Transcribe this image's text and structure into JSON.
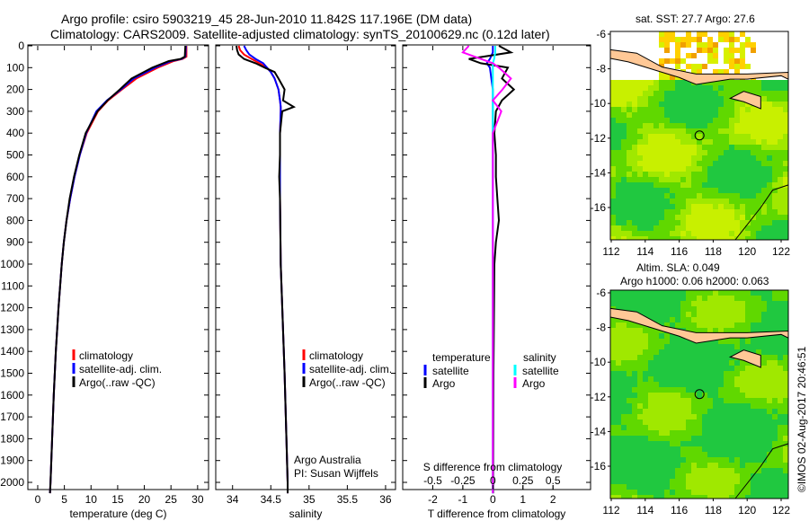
{
  "title": {
    "line1": "Argo profile: csiro 5903219_45 28-Jun-2010 11.842S 117.196E (DM data)",
    "line2": "Climatology: CARS2009. Satellite-adjusted climatology: synTS_20100629.nc (0.12d later)"
  },
  "colors": {
    "climatology": "#ff0000",
    "satellite": "#0000ff",
    "argo": "#000000",
    "sal_satellite": "#00ffff",
    "sal_argo": "#ff00ff"
  },
  "chart_data": [
    {
      "type": "line",
      "name": "temperature",
      "xlabel": "temperature (deg C)",
      "ylabel": "",
      "xlim": [
        -2,
        31
      ],
      "ylim": [
        2050,
        0
      ],
      "xticks": [
        "0",
        "5",
        "10",
        "15",
        "20",
        "25",
        "30"
      ],
      "xtick_values": [
        0,
        5,
        10,
        15,
        20,
        25,
        30
      ],
      "yticks": [
        "0",
        "100",
        "200",
        "300",
        "400",
        "500",
        "600",
        "700",
        "800",
        "900",
        "1000",
        "1100",
        "1200",
        "1300",
        "1400",
        "1500",
        "1600",
        "1700",
        "1800",
        "1900",
        "2000"
      ],
      "depth": [
        0,
        50,
        60,
        70,
        100,
        150,
        200,
        250,
        300,
        400,
        500,
        600,
        700,
        800,
        900,
        1000,
        1200,
        1400,
        1600,
        1800,
        2000,
        2050
      ],
      "series": [
        {
          "name": "climatology",
          "values": [
            27.9,
            27.9,
            27.2,
            25.5,
            22.5,
            18.5,
            15.8,
            13.2,
            11.3,
            9.2,
            7.9,
            6.9,
            6.1,
            5.4,
            4.9,
            4.5,
            3.9,
            3.4,
            3.0,
            2.7,
            2.4,
            2.3
          ]
        },
        {
          "name": "satellite-adj. clim.",
          "values": [
            27.8,
            27.7,
            27.0,
            25.0,
            22.0,
            18.0,
            15.6,
            13.0,
            11.0,
            9.1,
            7.9,
            6.9,
            6.1,
            5.4,
            4.9,
            4.5,
            3.9,
            3.4,
            3.0,
            2.7,
            2.4,
            2.3
          ]
        },
        {
          "name": "Argo(..raw -QC)",
          "values": [
            27.7,
            27.6,
            26.8,
            24.6,
            21.5,
            17.6,
            15.4,
            13.1,
            11.2,
            9.0,
            7.8,
            6.8,
            6.0,
            5.4,
            4.9,
            4.5,
            3.9,
            3.4,
            3.0,
            2.7,
            2.4,
            2.3
          ]
        }
      ],
      "legend": [
        "climatology",
        "satellite-adj. clim.",
        "Argo(..raw -QC)"
      ]
    },
    {
      "type": "line",
      "name": "salinity",
      "xlabel": "salinity",
      "xlim": [
        33.78,
        36.15
      ],
      "ylim": [
        2050,
        0
      ],
      "xticks": [
        "34",
        "34.5",
        "35",
        "35.5",
        "36"
      ],
      "xtick_values": [
        34,
        34.5,
        35,
        35.5,
        36
      ],
      "depth": [
        0,
        20,
        40,
        60,
        80,
        100,
        120,
        150,
        200,
        250,
        280,
        300,
        400,
        500,
        600,
        700,
        1000,
        1500,
        2000,
        2050
      ],
      "series": [
        {
          "name": "climatology",
          "values": [
            34.08,
            34.1,
            34.15,
            34.25,
            34.35,
            34.45,
            34.5,
            34.55,
            34.6,
            34.62,
            34.63,
            34.63,
            34.62,
            34.62,
            34.62,
            34.62,
            34.63,
            34.68,
            34.72,
            34.72
          ]
        },
        {
          "name": "satellite-adj. clim.",
          "values": [
            34.15,
            34.18,
            34.22,
            34.3,
            34.4,
            34.45,
            34.5,
            34.55,
            34.6,
            34.62,
            34.63,
            34.63,
            34.62,
            34.62,
            34.62,
            34.62,
            34.63,
            34.68,
            34.72,
            34.72
          ]
        },
        {
          "name": "Argo(..raw -QC)",
          "values": [
            34.05,
            34.06,
            34.08,
            34.15,
            34.3,
            34.42,
            34.55,
            34.6,
            34.68,
            34.66,
            34.8,
            34.65,
            34.62,
            34.62,
            34.61,
            34.62,
            34.63,
            34.68,
            34.72,
            34.72
          ]
        }
      ],
      "legend": [
        "climatology",
        "satellite-adj. clim.",
        "Argo(..raw -QC)"
      ],
      "annotation": [
        "Argo Australia",
        "PI: Susan Wijffels"
      ]
    },
    {
      "type": "line",
      "name": "differences",
      "xlabel": "T difference from climatology",
      "x2label": "S difference from climatology",
      "xlim": [
        -3,
        3
      ],
      "ylim": [
        2050,
        0
      ],
      "xticks": [
        "-2",
        "-1",
        "0",
        "1",
        "2"
      ],
      "xtick_values": [
        -2,
        -1,
        0,
        1,
        2
      ],
      "x2ticks": [
        "-0.5",
        "-0.25",
        "0",
        "0.25",
        "0.5"
      ],
      "x2tick_values": [
        -0.5,
        -0.25,
        0,
        0.25,
        0.5
      ],
      "depth": [
        0,
        30,
        60,
        80,
        100,
        150,
        200,
        250,
        300,
        400,
        500,
        600,
        700,
        800,
        900,
        1000,
        1500,
        2000,
        2050
      ],
      "series": [
        {
          "name": "temperature satellite",
          "axis": "T",
          "values": [
            0.0,
            0.0,
            -0.1,
            -0.2,
            -0.1,
            -0.05,
            0,
            0,
            0,
            0,
            0,
            0,
            0,
            0,
            0,
            0,
            0,
            0,
            0
          ]
        },
        {
          "name": "temperature Argo",
          "axis": "T",
          "values": [
            0.2,
            0.6,
            -0.8,
            -0.4,
            0.5,
            0.3,
            0.7,
            0.3,
            0.1,
            0.05,
            0.1,
            0.1,
            0.15,
            0.2,
            0.1,
            0.05,
            0.02,
            0.01,
            0.01
          ]
        },
        {
          "name": "salinity satellite",
          "axis": "S",
          "values": [
            0.02,
            0.02,
            0.01,
            0,
            0,
            0,
            0,
            0,
            0,
            0,
            0,
            0,
            0,
            0,
            0,
            0,
            0,
            0,
            0
          ]
        },
        {
          "name": "salinity Argo",
          "axis": "S",
          "values": [
            -0.2,
            -0.25,
            -0.1,
            0.0,
            0.05,
            0.15,
            0.08,
            0.0,
            0.07,
            0.0,
            0.0,
            0.0,
            0.0,
            0.0,
            0.0,
            0.0,
            0.0,
            0.0,
            0.0
          ]
        }
      ],
      "legend": {
        "temperature_title": "temperature",
        "salinity_title": "salinity",
        "t_satellite": "satellite",
        "t_argo": "Argo",
        "s_satellite": "satellite",
        "s_argo": "Argo"
      }
    }
  ],
  "maps": [
    {
      "title": "sat. SST: 27.7 Argo: 27.6",
      "lat_ticks": [
        "-6",
        "-8",
        "-10",
        "-12",
        "-14",
        "-16"
      ],
      "lon_ticks": [
        "112",
        "114",
        "116",
        "118",
        "120",
        "122"
      ],
      "profile_lat": -11.842,
      "profile_lon": 117.196
    },
    {
      "title1": "Altim. SLA: 0.049",
      "title2": "Argo h1000: 0.06 h2000: 0.063",
      "lat_ticks": [
        "-6",
        "-8",
        "-10",
        "-12",
        "-14",
        "-16"
      ],
      "lon_ticks": [
        "112",
        "114",
        "116",
        "118",
        "120",
        "122"
      ],
      "profile_lat": -11.842,
      "profile_lon": 117.196
    }
  ],
  "credit": "©IMOS 02-Aug-2017 20:46:51"
}
